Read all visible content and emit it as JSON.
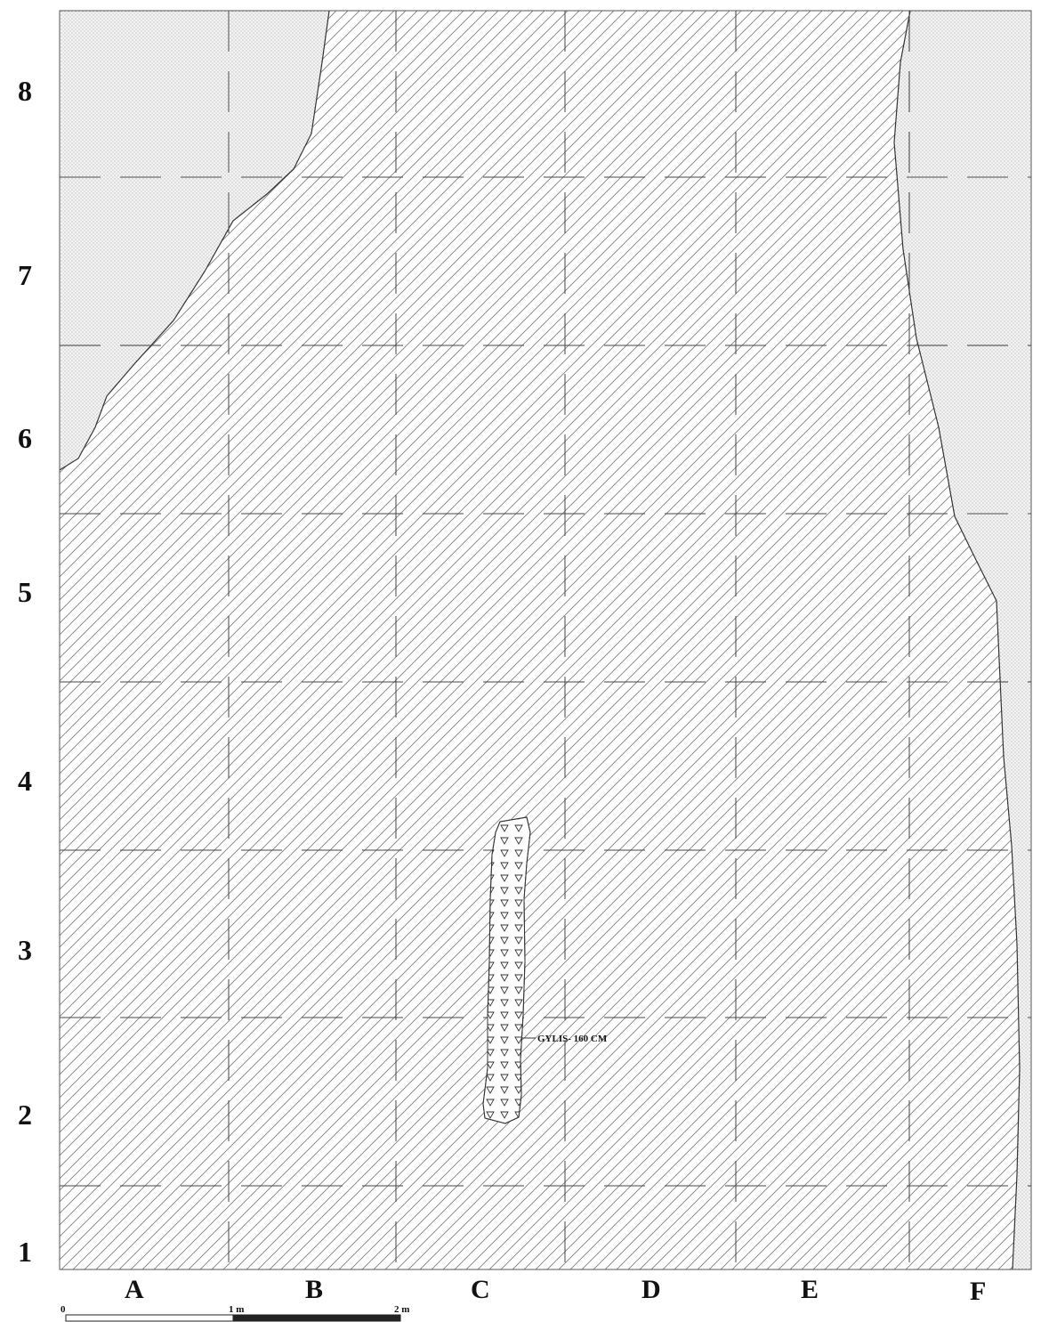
{
  "drawing": {
    "row_labels": [
      "8",
      "7",
      "6",
      "5",
      "4",
      "3",
      "2",
      "1"
    ],
    "column_labels": [
      "A",
      "B",
      "C",
      "D",
      "E",
      "F"
    ],
    "annotation": "GYLIS- 160 CM",
    "scale_bar": {
      "labels": [
        "0",
        "1 m",
        "2 m"
      ]
    },
    "colors": {
      "hatch": "#7a7a7a",
      "stipple": "#9a9a9a",
      "outline": "#333333",
      "grid": "#444444"
    }
  }
}
